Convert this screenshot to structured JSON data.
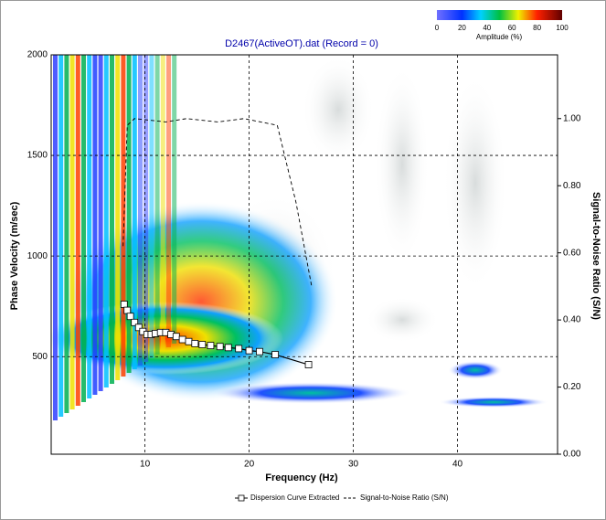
{
  "chart_data": {
    "type": "line",
    "title": "D2467(ActiveOT).dat (Record = 0)",
    "x_label": "Frequency (Hz)",
    "y_label": "Phase Velocity (m/sec)",
    "y2_label": "Signal-to-Noise Ratio (S/N)",
    "xlim": [
      1,
      49.6
    ],
    "xticks": [
      10,
      20,
      30,
      40
    ],
    "ylim": [
      15,
      2000
    ],
    "yticks": [
      500,
      1000,
      1500,
      2000
    ],
    "y2lim": [
      0,
      1.19
    ],
    "y2ticks": [
      {
        "value": 0,
        "label": "0.00"
      },
      {
        "value": 0.2,
        "label": "0.20"
      },
      {
        "value": 0.4,
        "label": "0.40"
      },
      {
        "value": 0.6,
        "label": "0.60"
      },
      {
        "value": 0.8,
        "label": "0.80"
      },
      {
        "value": 1,
        "label": "1.00"
      }
    ],
    "grid": true,
    "legend": "bottom",
    "colorbar": {
      "label": "Amplitude (%)",
      "lim": [
        0,
        100
      ],
      "ticks": [
        0,
        20,
        40,
        60,
        80,
        100
      ]
    },
    "series": [
      {
        "name": "Dispersion Curve Extracted",
        "color": "#000000",
        "x": [
          8.0,
          8.3,
          8.6,
          9.0,
          9.4,
          9.8,
          10.2,
          10.6,
          11.0,
          11.5,
          12.0,
          12.5,
          13.0,
          13.6,
          14.2,
          14.8,
          15.5,
          16.3,
          17.2,
          18.0,
          19.0,
          20.0,
          21.0,
          22.5,
          25.7
        ],
        "values": [
          760,
          730,
          700,
          670,
          645,
          625,
          610,
          610,
          615,
          620,
          620,
          610,
          600,
          585,
          575,
          565,
          560,
          555,
          550,
          545,
          540,
          530,
          525,
          510,
          460
        ]
      },
      {
        "name": "Signal-to-Noise Ratio (S/N)",
        "color": "#000000",
        "axis": "y2",
        "x": [
          7.9,
          8.3,
          9.0,
          12.0,
          14.0,
          17.0,
          19.5,
          22.7,
          24.5,
          26.0
        ],
        "values": [
          0.62,
          0.98,
          1.0,
          0.99,
          1.0,
          0.99,
          1.0,
          0.98,
          0.75,
          0.5
        ]
      }
    ]
  }
}
